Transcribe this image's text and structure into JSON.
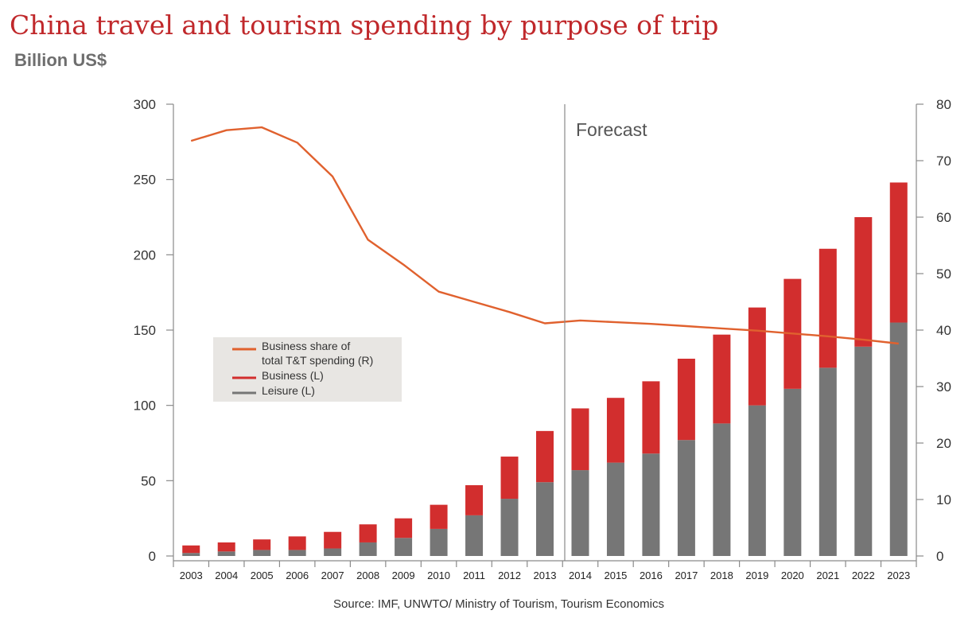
{
  "title": "China travel and tourism spending by purpose of trip",
  "subtitle": "Billion US$",
  "forecast_label": "Forecast",
  "source": "Source: IMF, UNWTO/ Ministry of Tourism, Tourism Economics",
  "legend": {
    "share_line1": "Business share of",
    "share_line2": "total T&T spending (R)",
    "business": "Business (L)",
    "leisure": "Leisure (L)"
  },
  "colors": {
    "leisure": "#767676",
    "business": "#d22e2e",
    "share": "#e0612e",
    "title": "#c0282b"
  },
  "chart_data": {
    "type": "bar",
    "categories": [
      "2003",
      "2004",
      "2005",
      "2006",
      "2007",
      "2008",
      "2009",
      "2010",
      "2011",
      "2012",
      "2013",
      "2014",
      "2015",
      "2016",
      "2017",
      "2018",
      "2019",
      "2020",
      "2021",
      "2022",
      "2023"
    ],
    "series": [
      {
        "name": "Leisure (L)",
        "axis": "left",
        "type": "bar",
        "values": [
          2,
          3,
          4,
          4,
          5,
          9,
          12,
          18,
          27,
          38,
          49,
          57,
          62,
          68,
          77,
          88,
          100,
          111,
          125,
          139,
          155
        ]
      },
      {
        "name": "Business (L)",
        "axis": "left",
        "type": "bar",
        "values": [
          5,
          6,
          7,
          9,
          11,
          12,
          13,
          16,
          20,
          28,
          34,
          41,
          43,
          48,
          54,
          59,
          65,
          73,
          79,
          86,
          93
        ]
      },
      {
        "name": "Business share of total T&T spending (R)",
        "axis": "right",
        "type": "line",
        "values": [
          73.5,
          75.4,
          75.9,
          73.2,
          67.2,
          56,
          51.6,
          46.8,
          45,
          43.2,
          41.2,
          41.7,
          41.4,
          41.1,
          40.7,
          40.3,
          39.9,
          39.4,
          38.9,
          38.3,
          37.6
        ]
      }
    ],
    "stacked": true,
    "ylim_left": [
      0,
      300
    ],
    "yticks_left": [
      0,
      50,
      100,
      150,
      200,
      250,
      300
    ],
    "ylim_right": [
      0,
      80
    ],
    "yticks_right": [
      0,
      10,
      20,
      30,
      40,
      50,
      60,
      70,
      80
    ],
    "forecast_start": "2014",
    "grid": false,
    "legend_position": "center-left"
  }
}
